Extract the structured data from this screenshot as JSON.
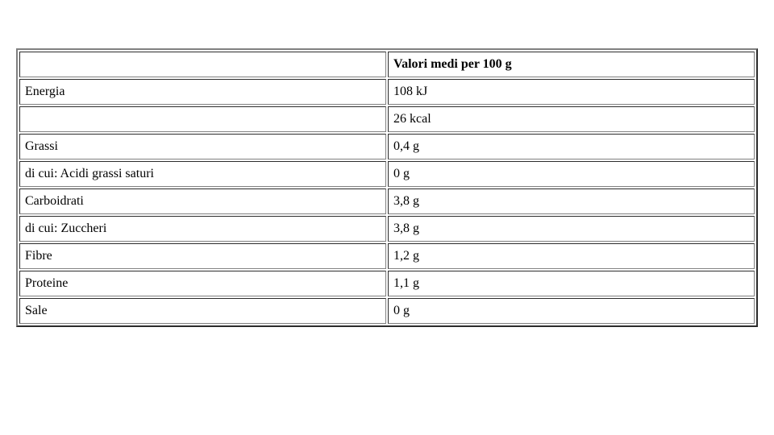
{
  "table": {
    "header": {
      "col1": "",
      "col2": "Valori medi per 100 g"
    },
    "rows": [
      {
        "label": "Energia",
        "value": "108 kJ"
      },
      {
        "label": "",
        "value": "26 kcal"
      },
      {
        "label": "Grassi",
        "value": "0,4 g"
      },
      {
        "label": "di cui: Acidi grassi saturi",
        "value": "0 g"
      },
      {
        "label": "Carboidrati",
        "value": "3,8 g"
      },
      {
        "label": "di cui: Zuccheri",
        "value": "3,8 g"
      },
      {
        "label": "Fibre",
        "value": "1,2 g"
      },
      {
        "label": "Proteine",
        "value": "1,1 g"
      },
      {
        "label": "Sale",
        "value": "0 g"
      }
    ]
  }
}
